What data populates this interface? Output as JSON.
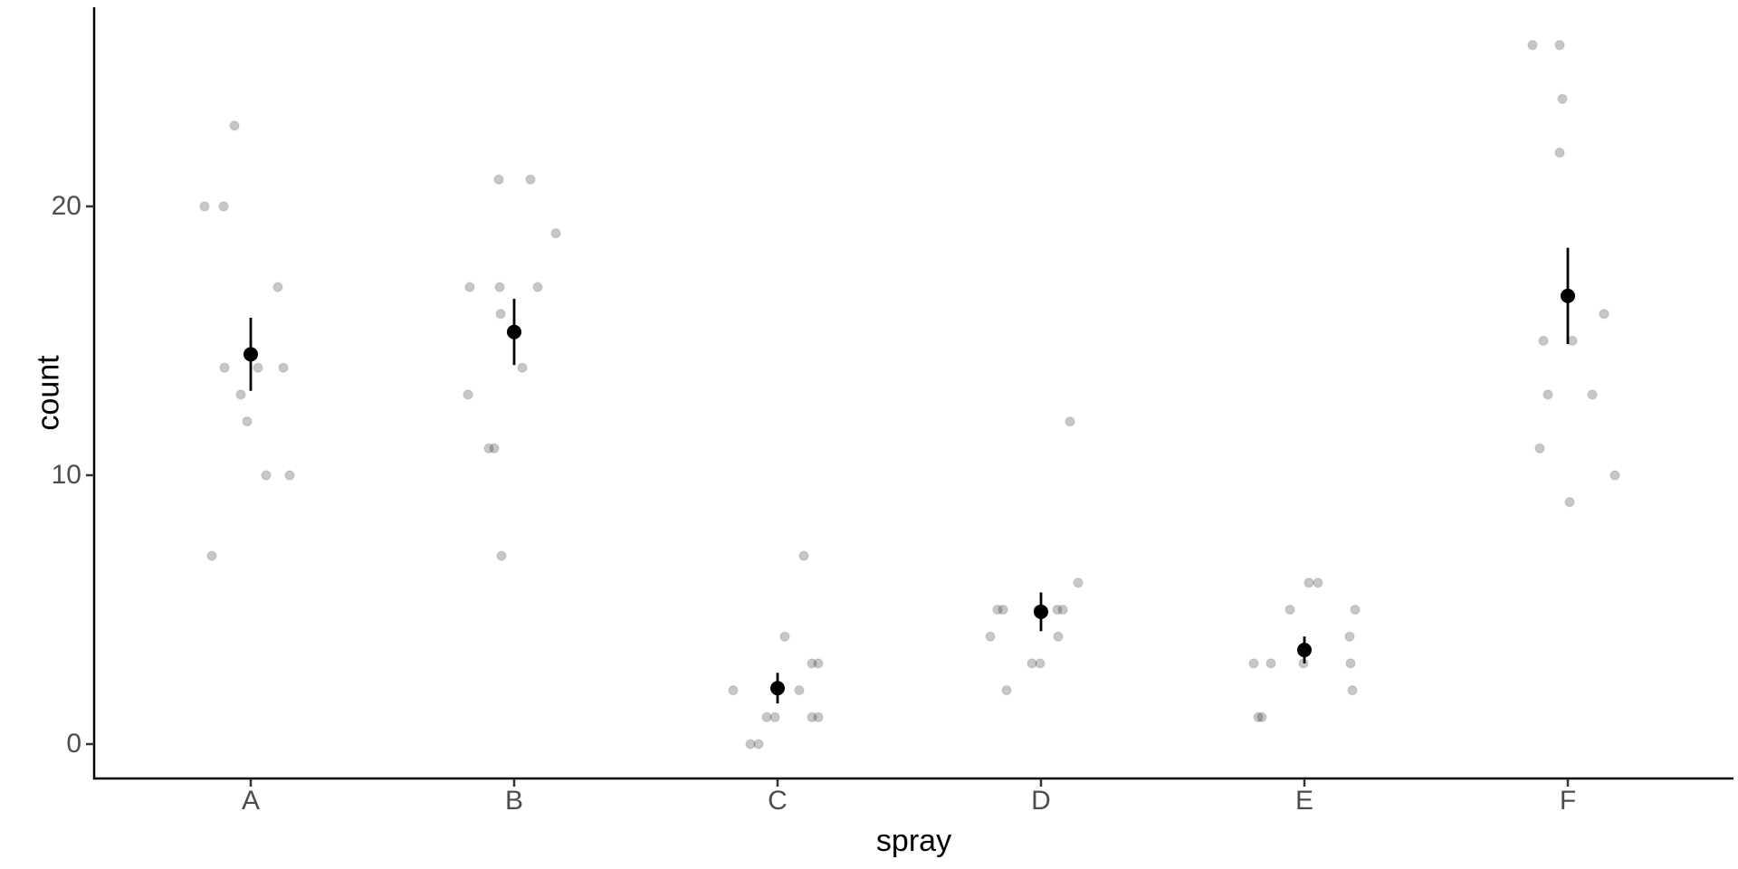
{
  "chart_data": {
    "type": "scatter",
    "title": "",
    "xlabel": "spray",
    "ylabel": "count",
    "x_categories": [
      "A",
      "B",
      "C",
      "D",
      "E",
      "F"
    ],
    "ytick_values": [
      0,
      10,
      20
    ],
    "ytick_labels": [
      "0",
      "10",
      "20"
    ],
    "ylim": [
      -1.3,
      27.4
    ],
    "grid": false,
    "legend": false,
    "style": {
      "axis_color": "#000000",
      "tick_color": "#333333",
      "tick_label_color": "#4d4d4d",
      "point_color": "#000000",
      "point_fill_alpha": 0.22,
      "point_stroke_alpha": 0.1,
      "mean_color": "#000000",
      "background": "#ffffff"
    },
    "groups": [
      {
        "category": "A",
        "mean": 14.5,
        "se": 1.36,
        "points": [
          {
            "count": 23,
            "jx": -18
          },
          {
            "count": 20,
            "jx": -51
          },
          {
            "count": 20,
            "jx": -30
          },
          {
            "count": 17,
            "jx": 30
          },
          {
            "count": 14,
            "jx": -29
          },
          {
            "count": 14,
            "jx": 8
          },
          {
            "count": 14,
            "jx": 36
          },
          {
            "count": 13,
            "jx": -11
          },
          {
            "count": 12,
            "jx": -4
          },
          {
            "count": 10,
            "jx": 17
          },
          {
            "count": 10,
            "jx": 43
          },
          {
            "count": 7,
            "jx": -43
          }
        ]
      },
      {
        "category": "B",
        "mean": 15.33,
        "se": 1.23,
        "points": [
          {
            "count": 21,
            "jx": -17
          },
          {
            "count": 21,
            "jx": 18
          },
          {
            "count": 19,
            "jx": 46
          },
          {
            "count": 17,
            "jx": -49
          },
          {
            "count": 17,
            "jx": -16
          },
          {
            "count": 17,
            "jx": 26
          },
          {
            "count": 16,
            "jx": -15
          },
          {
            "count": 14,
            "jx": 9
          },
          {
            "count": 13,
            "jx": -51
          },
          {
            "count": 11,
            "jx": -28
          },
          {
            "count": 11,
            "jx": -22
          },
          {
            "count": 7,
            "jx": -14
          }
        ]
      },
      {
        "category": "C",
        "mean": 2.08,
        "se": 0.57,
        "points": [
          {
            "count": 7,
            "jx": 29
          },
          {
            "count": 4,
            "jx": 8
          },
          {
            "count": 3,
            "jx": 38
          },
          {
            "count": 3,
            "jx": 45
          },
          {
            "count": 2,
            "jx": -49
          },
          {
            "count": 2,
            "jx": 24
          },
          {
            "count": 1,
            "jx": -12
          },
          {
            "count": 1,
            "jx": -3
          },
          {
            "count": 1,
            "jx": 38
          },
          {
            "count": 1,
            "jx": 45
          },
          {
            "count": 0,
            "jx": -30
          },
          {
            "count": 0,
            "jx": -21
          }
        ]
      },
      {
        "category": "D",
        "mean": 4.92,
        "se": 0.72,
        "points": [
          {
            "count": 12,
            "jx": 32
          },
          {
            "count": 6,
            "jx": 41
          },
          {
            "count": 5,
            "jx": -48
          },
          {
            "count": 5,
            "jx": -42
          },
          {
            "count": 5,
            "jx": -3
          },
          {
            "count": 5,
            "jx": 18
          },
          {
            "count": 5,
            "jx": 24
          },
          {
            "count": 4,
            "jx": -56
          },
          {
            "count": 4,
            "jx": 19
          },
          {
            "count": 3,
            "jx": -10
          },
          {
            "count": 3,
            "jx": -1
          },
          {
            "count": 2,
            "jx": -38
          }
        ]
      },
      {
        "category": "E",
        "mean": 3.5,
        "se": 0.5,
        "points": [
          {
            "count": 6,
            "jx": 5
          },
          {
            "count": 6,
            "jx": 15
          },
          {
            "count": 5,
            "jx": -16
          },
          {
            "count": 5,
            "jx": 56
          },
          {
            "count": 4,
            "jx": 50
          },
          {
            "count": 3,
            "jx": -56
          },
          {
            "count": 3,
            "jx": -37
          },
          {
            "count": 3,
            "jx": -1
          },
          {
            "count": 3,
            "jx": 51
          },
          {
            "count": 2,
            "jx": 53
          },
          {
            "count": 1,
            "jx": -51
          },
          {
            "count": 1,
            "jx": -47
          }
        ]
      },
      {
        "category": "F",
        "mean": 16.67,
        "se": 1.79,
        "points": [
          {
            "count": 26,
            "jx": -39
          },
          {
            "count": 26,
            "jx": -9
          },
          {
            "count": 24,
            "jx": -6
          },
          {
            "count": 22,
            "jx": -9
          },
          {
            "count": 16,
            "jx": 40
          },
          {
            "count": 15,
            "jx": -27
          },
          {
            "count": 15,
            "jx": 5
          },
          {
            "count": 13,
            "jx": -22
          },
          {
            "count": 13,
            "jx": 27
          },
          {
            "count": 11,
            "jx": -31
          },
          {
            "count": 10,
            "jx": 52
          },
          {
            "count": 9,
            "jx": 2
          }
        ]
      }
    ]
  }
}
